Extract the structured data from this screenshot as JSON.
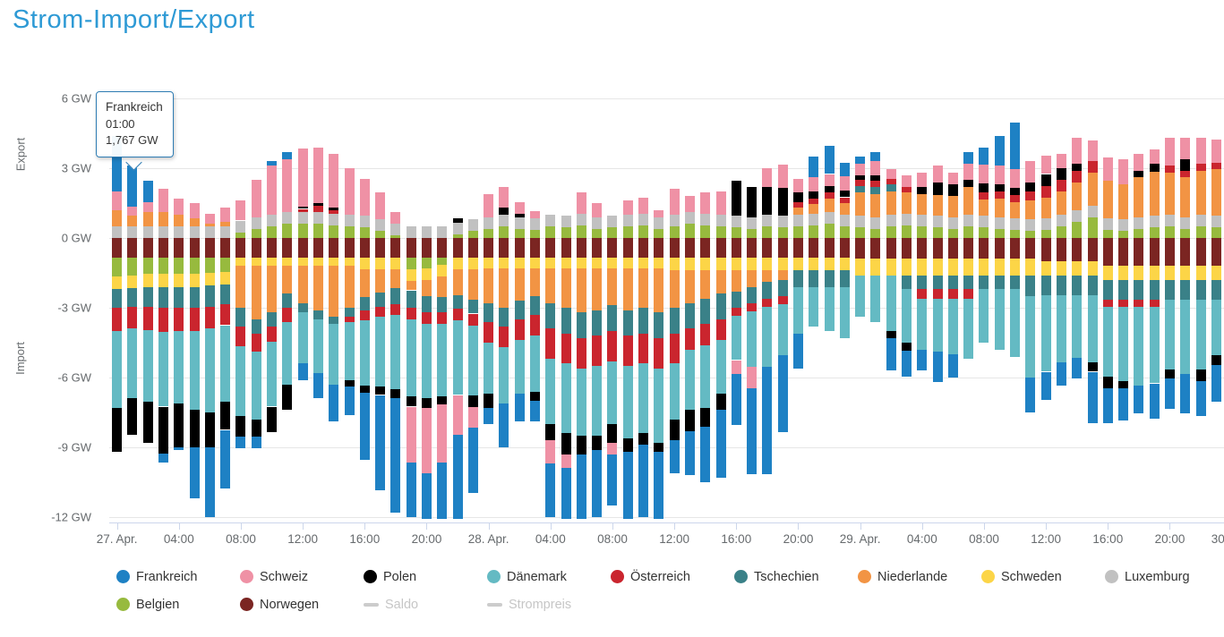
{
  "page": {
    "title": "Strom-Import/Export"
  },
  "tooltip": {
    "country": "Frankreich",
    "time": "01:00",
    "value": "1,767 GW"
  },
  "chart_data": {
    "type": "bar",
    "stacking": "normal",
    "unit": "GW",
    "title": "Strom-Import/Export",
    "ylim": [
      -12,
      6
    ],
    "y_ticks": [
      "6 GW",
      "3 GW",
      "0 GW",
      "-3 GW",
      "-6 GW",
      "-9 GW",
      "-12 GW"
    ],
    "y_tick_values": [
      6,
      3,
      0,
      -3,
      -6,
      -9,
      -12
    ],
    "axis_area_labels": {
      "positive": "Export",
      "negative": "Import"
    },
    "x_tick_labels": [
      "27. Apr.",
      "04:00",
      "08:00",
      "12:00",
      "16:00",
      "20:00",
      "28. Apr.",
      "04:00",
      "08:00",
      "12:00",
      "16:00",
      "20:00",
      "29. Apr.",
      "04:00",
      "08:00",
      "12:00",
      "16:00",
      "20:00",
      "30. Apr."
    ],
    "hours_per_tick": 4,
    "n_hours": 72,
    "grid": true,
    "legend_position": "bottom",
    "stack_order_from_zero": [
      "Norwegen",
      "Belgien",
      "Luxemburg",
      "Schweden",
      "Niederlande",
      "Tschechien",
      "Österreich",
      "Dänemark",
      "Polen",
      "Schweiz",
      "Frankreich"
    ],
    "series": [
      {
        "name": "Frankreich",
        "color": "#1e81c4",
        "values": [
          2.4,
          1.767,
          0.9,
          -0.4,
          -0.1,
          -2.2,
          -3.0,
          -2.5,
          -0.5,
          -0.5,
          0.2,
          0.3,
          -0.7,
          -1.1,
          -1.6,
          -1.2,
          -2.9,
          -4.1,
          -4.9,
          -2.35,
          -2.5,
          -2.9,
          -4.1,
          -2.8,
          -0.7,
          -1.9,
          -1.2,
          -0.9,
          -2.3,
          -2.6,
          -2.8,
          -2.9,
          -2.2,
          -3.6,
          -3.1,
          -3.9,
          -1.4,
          -1.9,
          -2.4,
          -2.9,
          -2.2,
          -3.7,
          -4.6,
          -3.3,
          -1.5,
          0.9,
          1.2,
          0.6,
          0.3,
          0.4,
          -1.4,
          -1.1,
          -0.9,
          -1.3,
          -1.0,
          0.5,
          0.75,
          1.3,
          2.0,
          -1.5,
          -1.2,
          -1.0,
          -0.9,
          -2.2,
          -1.5,
          -1.4,
          -1.2,
          -1.5,
          -1.3,
          -1.7,
          -1.5,
          -1.6
        ]
      },
      {
        "name": "Schweiz",
        "color": "#ef91a5",
        "values": [
          0.8,
          0.4,
          0.45,
          1.0,
          0.7,
          0.65,
          0.45,
          0.6,
          0.85,
          1.6,
          2.1,
          2.3,
          2.5,
          2.4,
          2.3,
          2.0,
          1.6,
          1.15,
          0.5,
          -2.4,
          -2.8,
          -2.5,
          -1.7,
          -0.9,
          1.0,
          0.9,
          0.5,
          0.3,
          -1.0,
          -0.6,
          0.9,
          0.6,
          -0.5,
          0.6,
          0.7,
          0.3,
          1.1,
          0.7,
          0.9,
          1.0,
          -0.6,
          -0.9,
          0.8,
          1.0,
          0.6,
          0.6,
          0.5,
          0.6,
          0.5,
          0.6,
          0.4,
          0.5,
          0.6,
          0.7,
          0.5,
          0.7,
          0.8,
          0.8,
          0.8,
          0.9,
          0.8,
          0.6,
          1.1,
          0.9,
          1.0,
          1.1,
          0.7,
          0.6,
          1.2,
          0.9,
          1.1,
          1.0
        ]
      },
      {
        "name": "Polen",
        "color": "#000000",
        "values": [
          -1.9,
          -1.55,
          -1.75,
          -2.0,
          -1.9,
          -1.6,
          -1.5,
          -1.2,
          -0.9,
          -0.75,
          -1.1,
          -1.1,
          0.1,
          0.1,
          0.1,
          -0.3,
          -0.3,
          -0.35,
          -0.4,
          -0.45,
          -0.4,
          -0.35,
          0.2,
          -0.5,
          -0.6,
          0.3,
          0.15,
          -0.4,
          -0.7,
          -0.9,
          -0.8,
          -0.6,
          -0.8,
          -0.6,
          -0.5,
          -0.4,
          -0.9,
          -0.9,
          -0.8,
          -0.7,
          1.5,
          1.3,
          1.2,
          1.2,
          0.4,
          0.3,
          0.3,
          0.3,
          0.2,
          0.25,
          -0.3,
          -0.35,
          0.3,
          0.55,
          0.5,
          0.3,
          0.4,
          0.3,
          0.3,
          0.4,
          0.5,
          0.5,
          0.3,
          -0.4,
          -0.5,
          -0.3,
          0.3,
          0.35,
          -0.4,
          0.5,
          -0.5,
          -0.4
        ]
      },
      {
        "name": "Dänemark",
        "color": "#64bac3",
        "values": [
          -3.3,
          -3.0,
          -3.1,
          -3.2,
          -3.1,
          -3.4,
          -3.6,
          -3.3,
          -3.0,
          -2.9,
          -2.8,
          -2.7,
          -2.2,
          -2.3,
          -2.6,
          -2.5,
          -2.8,
          -3.0,
          -3.2,
          -3.3,
          -3.2,
          -3.1,
          -3.2,
          -3.0,
          -2.2,
          -2.4,
          -2.3,
          -2.4,
          -2.8,
          -3.0,
          -2.9,
          -3.0,
          -2.7,
          -3.1,
          -3.0,
          -3.2,
          -2.4,
          -2.6,
          -2.7,
          -2.3,
          -1.9,
          -2.4,
          -2.6,
          -2.2,
          -2.0,
          -1.7,
          -1.9,
          -2.2,
          -1.8,
          -2.0,
          -2.4,
          -2.3,
          -2.2,
          -2.3,
          -2.4,
          -2.6,
          -2.3,
          -2.6,
          -2.9,
          -3.5,
          -3.3,
          -2.9,
          -2.7,
          -2.9,
          -3.0,
          -3.2,
          -3.4,
          -3.3,
          -3.0,
          -3.2,
          -3.0,
          -2.4
        ]
      },
      {
        "name": "Österreich",
        "color": "#ca252e",
        "values": [
          -1.0,
          -0.95,
          -1.0,
          -1.05,
          -1.0,
          -1.0,
          -0.95,
          -0.9,
          -0.85,
          -0.8,
          -0.65,
          -0.6,
          0.15,
          0.3,
          0.15,
          -0.2,
          -0.45,
          -0.45,
          -0.45,
          -0.5,
          -0.5,
          -0.5,
          -0.5,
          -0.5,
          -0.9,
          -0.9,
          -0.9,
          -0.9,
          -1.3,
          -1.3,
          -1.3,
          -1.3,
          -1.3,
          -1.3,
          -1.3,
          -1.3,
          -1.3,
          -0.9,
          -0.9,
          -0.9,
          -0.35,
          -0.35,
          -0.35,
          -0.35,
          0.25,
          0.25,
          0.25,
          0.25,
          0.25,
          0.25,
          0.25,
          0.25,
          -0.4,
          -0.4,
          -0.4,
          -0.4,
          0.3,
          0.3,
          0.3,
          0.4,
          0.5,
          0.5,
          0.5,
          0.5,
          -0.3,
          -0.3,
          -0.3,
          -0.3,
          0.3,
          0.3,
          0.3,
          0.3
        ]
      },
      {
        "name": "Tschechien",
        "color": "#3a8188",
        "values": [
          -0.8,
          -0.8,
          -0.85,
          -0.9,
          -0.9,
          -0.9,
          -0.9,
          -0.85,
          -0.8,
          -0.6,
          -0.6,
          -0.6,
          -0.4,
          -0.4,
          -0.3,
          -0.4,
          -0.55,
          -0.6,
          -0.7,
          -0.75,
          -0.7,
          -0.65,
          -0.6,
          -0.6,
          -0.8,
          -0.8,
          -0.8,
          -0.8,
          -1.1,
          -1.1,
          -1.1,
          -1.1,
          -1.1,
          -1.1,
          -1.1,
          -1.1,
          -1.1,
          -1.1,
          -1.1,
          -1.1,
          -0.7,
          -0.7,
          -0.7,
          -0.7,
          -0.7,
          -0.7,
          -0.7,
          -0.7,
          0.3,
          0.3,
          0.3,
          -0.6,
          -0.6,
          -0.6,
          -0.6,
          -0.6,
          -0.6,
          -0.6,
          -0.6,
          -0.9,
          -0.85,
          -0.85,
          -0.85,
          -0.85,
          -0.85,
          -0.85,
          -0.85,
          -0.85,
          -0.85,
          -0.85,
          -0.85,
          -0.85
        ]
      },
      {
        "name": "Niederlande",
        "color": "#f29444",
        "values": [
          0.7,
          0.45,
          0.6,
          0.6,
          0.5,
          0.35,
          0.1,
          0.2,
          -1.8,
          -2.3,
          -2.0,
          -1.2,
          -1.6,
          -1.9,
          -2.2,
          -1.8,
          -1.2,
          -1.0,
          -0.8,
          -0.4,
          -0.7,
          -0.9,
          -1.1,
          -1.3,
          -1.5,
          -1.7,
          -1.4,
          -1.2,
          -1.5,
          -1.7,
          -1.9,
          -1.8,
          -1.6,
          -1.8,
          -1.7,
          -1.9,
          -1.6,
          -1.4,
          -1.2,
          -1.0,
          -0.9,
          -0.7,
          -0.5,
          -0.4,
          0.3,
          0.4,
          0.6,
          0.5,
          1.0,
          1.0,
          1.0,
          0.9,
          0.9,
          0.9,
          0.9,
          1.2,
          0.7,
          0.8,
          0.7,
          0.8,
          0.9,
          1.0,
          1.2,
          1.4,
          1.6,
          1.5,
          1.7,
          1.9,
          1.8,
          1.7,
          1.9,
          2.0
        ]
      },
      {
        "name": "Schweden",
        "color": "#fcd547",
        "values": [
          -0.55,
          -0.55,
          -0.55,
          -0.55,
          -0.55,
          -0.55,
          -0.55,
          -0.55,
          -0.35,
          -0.35,
          -0.35,
          -0.35,
          -0.35,
          -0.35,
          -0.35,
          -0.35,
          -0.5,
          -0.5,
          -0.5,
          -0.5,
          -0.5,
          -0.5,
          -0.5,
          -0.5,
          -0.45,
          -0.45,
          -0.45,
          -0.45,
          -0.45,
          -0.45,
          -0.45,
          -0.45,
          -0.45,
          -0.45,
          -0.45,
          -0.45,
          -0.55,
          -0.55,
          -0.55,
          -0.55,
          -0.55,
          -0.55,
          -0.55,
          -0.55,
          -0.55,
          -0.55,
          -0.55,
          -0.55,
          -0.7,
          -0.7,
          -0.7,
          -0.7,
          -0.7,
          -0.7,
          -0.7,
          -0.7,
          -0.7,
          -0.7,
          -0.7,
          -0.7,
          -0.6,
          -0.6,
          -0.6,
          -0.6,
          -0.6,
          -0.6,
          -0.6,
          -0.6,
          -0.6,
          -0.6,
          -0.6,
          -0.6
        ]
      },
      {
        "name": "Luxemburg",
        "color": "#c1c1c1",
        "values": [
          0.5,
          0.5,
          0.5,
          0.5,
          0.5,
          0.5,
          0.5,
          0.5,
          0.5,
          0.5,
          0.5,
          0.5,
          0.5,
          0.5,
          0.5,
          0.5,
          0.5,
          0.5,
          0.5,
          0.5,
          0.5,
          0.5,
          0.5,
          0.5,
          0.5,
          0.5,
          0.5,
          0.5,
          0.5,
          0.5,
          0.5,
          0.5,
          0.5,
          0.5,
          0.5,
          0.5,
          0.5,
          0.5,
          0.5,
          0.5,
          0.5,
          0.5,
          0.5,
          0.5,
          0.5,
          0.5,
          0.5,
          0.5,
          0.5,
          0.5,
          0.5,
          0.5,
          0.5,
          0.5,
          0.5,
          0.5,
          0.5,
          0.5,
          0.5,
          0.5,
          0.5,
          0.5,
          0.5,
          0.5,
          0.5,
          0.5,
          0.5,
          0.5,
          0.5,
          0.5,
          0.5,
          0.5
        ]
      },
      {
        "name": "Belgien",
        "color": "#97ba3e",
        "values": [
          -0.8,
          -0.75,
          -0.7,
          -0.7,
          -0.7,
          -0.7,
          -0.65,
          -0.6,
          0.25,
          0.4,
          0.5,
          0.6,
          0.6,
          0.6,
          0.55,
          0.5,
          0.45,
          0.3,
          0.1,
          -0.5,
          -0.45,
          -0.3,
          0.15,
          0.3,
          0.4,
          0.5,
          0.4,
          0.35,
          0.5,
          0.45,
          0.55,
          0.4,
          0.45,
          0.5,
          0.55,
          0.4,
          0.5,
          0.6,
          0.55,
          0.5,
          0.45,
          0.4,
          0.5,
          0.45,
          0.5,
          0.55,
          0.6,
          0.5,
          0.45,
          0.4,
          0.5,
          0.55,
          0.5,
          0.45,
          0.4,
          0.5,
          0.45,
          0.4,
          0.35,
          0.3,
          0.35,
          0.5,
          0.7,
          0.9,
          0.35,
          0.3,
          0.4,
          0.45,
          0.5,
          0.4,
          0.5,
          0.45
        ]
      },
      {
        "name": "Norwegen",
        "color": "#7b2522",
        "values": [
          -0.85,
          -0.85,
          -0.85,
          -0.85,
          -0.85,
          -0.85,
          -0.85,
          -0.85,
          -0.85,
          -0.85,
          -0.85,
          -0.85,
          -0.85,
          -0.85,
          -0.85,
          -0.85,
          -0.85,
          -0.85,
          -0.85,
          -0.85,
          -0.85,
          -0.85,
          -0.85,
          -0.85,
          -0.85,
          -0.85,
          -0.85,
          -0.85,
          -0.85,
          -0.85,
          -0.85,
          -0.85,
          -0.85,
          -0.85,
          -0.85,
          -0.85,
          -0.85,
          -0.85,
          -0.85,
          -0.85,
          -0.85,
          -0.85,
          -0.85,
          -0.85,
          -0.85,
          -0.85,
          -0.85,
          -0.85,
          -0.9,
          -0.9,
          -0.9,
          -0.9,
          -0.9,
          -0.9,
          -0.9,
          -0.9,
          -0.9,
          -0.9,
          -0.9,
          -0.9,
          -1.0,
          -1.0,
          -1.0,
          -1.0,
          -1.2,
          -1.2,
          -1.2,
          -1.2,
          -1.2,
          -1.2,
          -1.2,
          -1.2
        ]
      }
    ],
    "extra_legend": [
      {
        "name": "Saldo",
        "type": "line",
        "color": "#cccccc",
        "disabled": true
      },
      {
        "name": "Strompreis",
        "type": "line",
        "color": "#cccccc",
        "disabled": true
      }
    ]
  }
}
